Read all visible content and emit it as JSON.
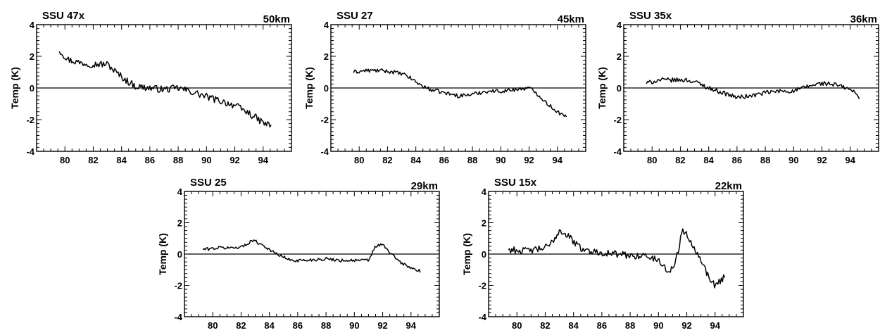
{
  "chart_data": [
    {
      "type": "line",
      "title": "SSU 47x",
      "annotation": "50km",
      "ylabel": "Temp  (K)",
      "xlim": [
        78,
        96
      ],
      "ylim": [
        -4,
        4
      ],
      "xticks": [
        80,
        82,
        84,
        86,
        88,
        90,
        92,
        94
      ],
      "yticks": [
        -4,
        -2,
        0,
        2,
        4
      ],
      "zero_line": true,
      "anchors": [
        [
          79.6,
          2.4
        ],
        [
          80.2,
          1.8
        ],
        [
          81,
          1.6
        ],
        [
          82,
          1.5
        ],
        [
          83,
          1.5
        ],
        [
          83.6,
          1.0
        ],
        [
          84.3,
          0.5
        ],
        [
          85,
          0.1
        ],
        [
          86,
          0.0
        ],
        [
          87,
          -0.1
        ],
        [
          88,
          0.0
        ],
        [
          88.8,
          -0.2
        ],
        [
          89.5,
          -0.4
        ],
        [
          90.5,
          -0.7
        ],
        [
          91.3,
          -0.9
        ],
        [
          92,
          -1.1
        ],
        [
          93,
          -1.6
        ],
        [
          94,
          -2.2
        ],
        [
          94.6,
          -2.4
        ]
      ],
      "noise": 0.22
    },
    {
      "type": "line",
      "title": "SSU 27",
      "annotation": "45km",
      "ylabel": "Temp  (K)",
      "xlim": [
        78,
        96
      ],
      "ylim": [
        -4,
        4
      ],
      "xticks": [
        80,
        82,
        84,
        86,
        88,
        90,
        92,
        94
      ],
      "yticks": [
        -4,
        -2,
        0,
        2,
        4
      ],
      "zero_line": true,
      "anchors": [
        [
          79.6,
          1.0
        ],
        [
          80.5,
          1.1
        ],
        [
          81.5,
          1.1
        ],
        [
          82.5,
          1.0
        ],
        [
          83.3,
          0.8
        ],
        [
          84,
          0.4
        ],
        [
          84.3,
          0.2
        ],
        [
          85,
          -0.1
        ],
        [
          86,
          -0.3
        ],
        [
          87,
          -0.5
        ],
        [
          88,
          -0.4
        ],
        [
          89,
          -0.2
        ],
        [
          90,
          -0.2
        ],
        [
          91,
          -0.1
        ],
        [
          92,
          0.0
        ],
        [
          92.5,
          -0.3
        ],
        [
          93.3,
          -1.0
        ],
        [
          94,
          -1.5
        ],
        [
          94.7,
          -1.9
        ]
      ],
      "noise": 0.12
    },
    {
      "type": "line",
      "title": "SSU 35x",
      "annotation": "36km",
      "ylabel": "Temp  (K)",
      "xlim": [
        78,
        96
      ],
      "ylim": [
        -4,
        4
      ],
      "xticks": [
        80,
        82,
        84,
        86,
        88,
        90,
        92,
        94
      ],
      "yticks": [
        -4,
        -2,
        0,
        2,
        4
      ],
      "zero_line": true,
      "anchors": [
        [
          79.6,
          0.3
        ],
        [
          80.5,
          0.5
        ],
        [
          81.5,
          0.5
        ],
        [
          82.5,
          0.5
        ],
        [
          83.3,
          0.3
        ],
        [
          84,
          0.0
        ],
        [
          85,
          -0.3
        ],
        [
          86,
          -0.6
        ],
        [
          87,
          -0.5
        ],
        [
          88,
          -0.3
        ],
        [
          89,
          -0.2
        ],
        [
          90,
          -0.2
        ],
        [
          91,
          0.1
        ],
        [
          92,
          0.3
        ],
        [
          93,
          0.2
        ],
        [
          94,
          -0.1
        ],
        [
          94.7,
          -0.6
        ]
      ],
      "noise": 0.14
    },
    {
      "type": "line",
      "title": "SSU 25",
      "annotation": "29km",
      "ylabel": "Temp  (K)",
      "xlim": [
        78,
        96
      ],
      "ylim": [
        -4,
        4
      ],
      "xticks": [
        80,
        82,
        84,
        86,
        88,
        90,
        92,
        94
      ],
      "yticks": [
        -4,
        -2,
        0,
        2,
        4
      ],
      "zero_line": true,
      "anchors": [
        [
          79.3,
          0.3
        ],
        [
          80.5,
          0.4
        ],
        [
          81.5,
          0.4
        ],
        [
          82.2,
          0.5
        ],
        [
          82.8,
          0.9
        ],
        [
          83.5,
          0.6
        ],
        [
          84.3,
          0.1
        ],
        [
          85.5,
          -0.4
        ],
        [
          86.5,
          -0.4
        ],
        [
          88,
          -0.3
        ],
        [
          89,
          -0.4
        ],
        [
          90,
          -0.4
        ],
        [
          91,
          -0.4
        ],
        [
          91.5,
          0.5
        ],
        [
          92,
          0.6
        ],
        [
          92.5,
          0.1
        ],
        [
          93.2,
          -0.5
        ],
        [
          94,
          -0.9
        ],
        [
          94.7,
          -1.1
        ]
      ],
      "noise": 0.1
    },
    {
      "type": "line",
      "title": "SSU 15x",
      "annotation": "22km",
      "ylabel": "Temp  (K)",
      "xlim": [
        78,
        96
      ],
      "ylim": [
        -4,
        4
      ],
      "xticks": [
        80,
        82,
        84,
        86,
        88,
        90,
        92,
        94
      ],
      "yticks": [
        -4,
        -2,
        0,
        2,
        4
      ],
      "zero_line": true,
      "anchors": [
        [
          79.4,
          0.3
        ],
        [
          80.5,
          0.2
        ],
        [
          81.5,
          0.3
        ],
        [
          82.3,
          0.5
        ],
        [
          83,
          1.5
        ],
        [
          83.6,
          1.2
        ],
        [
          84.3,
          0.5
        ],
        [
          85,
          0.2
        ],
        [
          86,
          0.1
        ],
        [
          87,
          0.0
        ],
        [
          88,
          -0.1
        ],
        [
          89,
          -0.1
        ],
        [
          90,
          -0.4
        ],
        [
          90.8,
          -1.2
        ],
        [
          91.3,
          -0.2
        ],
        [
          91.7,
          1.6
        ],
        [
          92.3,
          0.8
        ],
        [
          93,
          -0.3
        ],
        [
          93.5,
          -1.4
        ],
        [
          94,
          -2.0
        ],
        [
          94.7,
          -1.4
        ]
      ],
      "noise": 0.22
    }
  ]
}
